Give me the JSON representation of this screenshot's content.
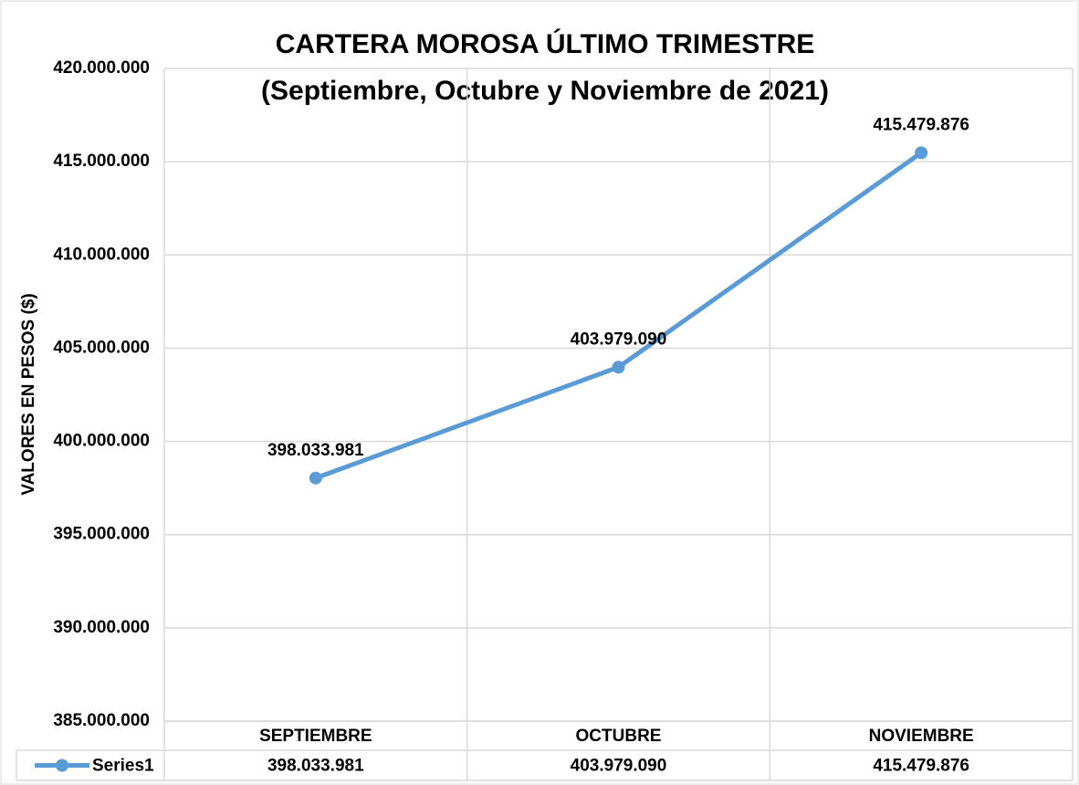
{
  "chart_data": {
    "type": "line",
    "title": "CARTERA MOROSA ÚLTIMO TRIMESTRE",
    "subtitle": "(Septiembre, Octubre y Noviembre de 2021)",
    "y_label": "VALORES EN PESOS ($)",
    "categories": [
      "SEPTIEMBRE",
      "OCTUBRE",
      "NOVIEMBRE"
    ],
    "series": [
      {
        "name": "Series1",
        "color": "#5b9bd5",
        "values": [
          398033981,
          403979090,
          415479876
        ],
        "value_labels": [
          "398.033.981",
          "403.979.090",
          "415.479.876"
        ]
      }
    ],
    "ylim": [
      385000000,
      420000000
    ],
    "yticks": [
      {
        "value": 385000000,
        "label": "385.000.000"
      },
      {
        "value": 390000000,
        "label": "390.000.000"
      },
      {
        "value": 395000000,
        "label": "395.000.000"
      },
      {
        "value": 400000000,
        "label": "400.000.000"
      },
      {
        "value": 405000000,
        "label": "405.000.000"
      },
      {
        "value": 410000000,
        "label": "410.000.000"
      },
      {
        "value": 415000000,
        "label": "415.000.000"
      },
      {
        "value": 420000000,
        "label": "420.000.000"
      }
    ],
    "grid": true
  }
}
